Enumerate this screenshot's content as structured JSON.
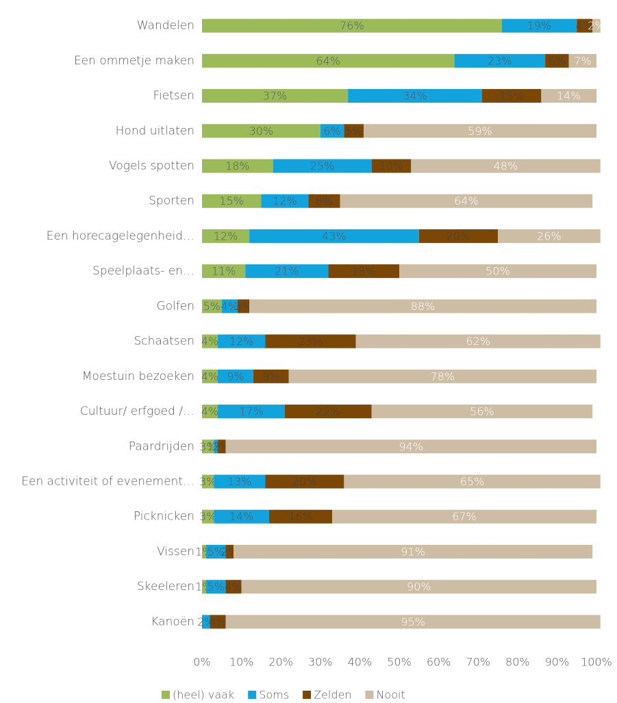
{
  "chart_data": {
    "type": "stacked_barh",
    "categories": [
      "Wandelen",
      "Een ommetje maken",
      "Fietsen",
      "Hond uitlaten",
      "Vogels spotten",
      "Sporten",
      "Een horecagelegenheid…",
      "Speelplaats- en…",
      "Golfen",
      "Schaatsen",
      "Moestuin bezoeken",
      "Cultuur/ erfgoed /…",
      "Paardrijden",
      "Een activiteit of evenement…",
      "Picknicken",
      "Vissen",
      "Skeeleren",
      "Kanoën"
    ],
    "series": [
      {
        "name": "(heel) vaak",
        "color": "#9bbb59",
        "values": [
          76,
          64,
          37,
          30,
          18,
          15,
          12,
          11,
          5,
          4,
          4,
          4,
          3,
          3,
          3,
          1,
          1,
          0
        ],
        "value_labels": [
          "76%",
          "64%",
          "37%",
          "30%",
          "18%",
          "15%",
          "12%",
          "11%",
          "5%",
          "4%",
          "4%",
          "4%",
          "3%",
          "3%",
          "3%",
          "1%",
          "1%",
          null
        ]
      },
      {
        "name": "Soms",
        "color": "#12a2dc",
        "values": [
          19,
          23,
          34,
          6,
          25,
          12,
          43,
          21,
          4,
          12,
          9,
          17,
          1,
          13,
          14,
          5,
          5,
          2
        ],
        "value_labels": [
          "19%",
          "23%",
          "34%",
          "6%",
          "25%",
          "12%",
          "43%",
          "21%",
          "4%",
          "12%",
          "9%",
          "17%",
          "1%",
          "13%",
          "14%",
          "5%",
          "5%",
          "2%"
        ]
      },
      {
        "name": "Zelden",
        "color": "#7b4707",
        "values": [
          4,
          6,
          15,
          5,
          10,
          8,
          20,
          18,
          3,
          23,
          9,
          22,
          2,
          20,
          16,
          2,
          4,
          4
        ],
        "value_labels": [
          "4%",
          "6%",
          "15%",
          "5%",
          "10%",
          "8%",
          "20%",
          "18%",
          "3%",
          "23%",
          "9%",
          "22%",
          "2%",
          "20%",
          "16%",
          "2%",
          "4%",
          "4%"
        ]
      },
      {
        "name": "Nooit",
        "color": "#cdbda4",
        "values": [
          2,
          7,
          14,
          59,
          48,
          64,
          26,
          50,
          88,
          62,
          78,
          56,
          94,
          65,
          67,
          91,
          90,
          95
        ],
        "value_labels": [
          "2%",
          "7%",
          "14%",
          "59%",
          "48%",
          "64%",
          "26%",
          "50%",
          "88%",
          "62%",
          "78%",
          "56%",
          "94%",
          "65%",
          "67%",
          "91%",
          "90%",
          "95%"
        ]
      }
    ],
    "xlim": [
      0,
      100
    ],
    "xticks": [
      {
        "value": 0,
        "label": "0%"
      },
      {
        "value": 10,
        "label": "10%"
      },
      {
        "value": 20,
        "label": "20%"
      },
      {
        "value": 30,
        "label": "30%"
      },
      {
        "value": 40,
        "label": "40%"
      },
      {
        "value": 50,
        "label": "50%"
      },
      {
        "value": 60,
        "label": "60%"
      },
      {
        "value": 70,
        "label": "70%"
      },
      {
        "value": 80,
        "label": "80%"
      },
      {
        "value": 90,
        "label": "90%"
      },
      {
        "value": 100,
        "label": "100%"
      }
    ],
    "grid": true,
    "legend": "bottom"
  }
}
